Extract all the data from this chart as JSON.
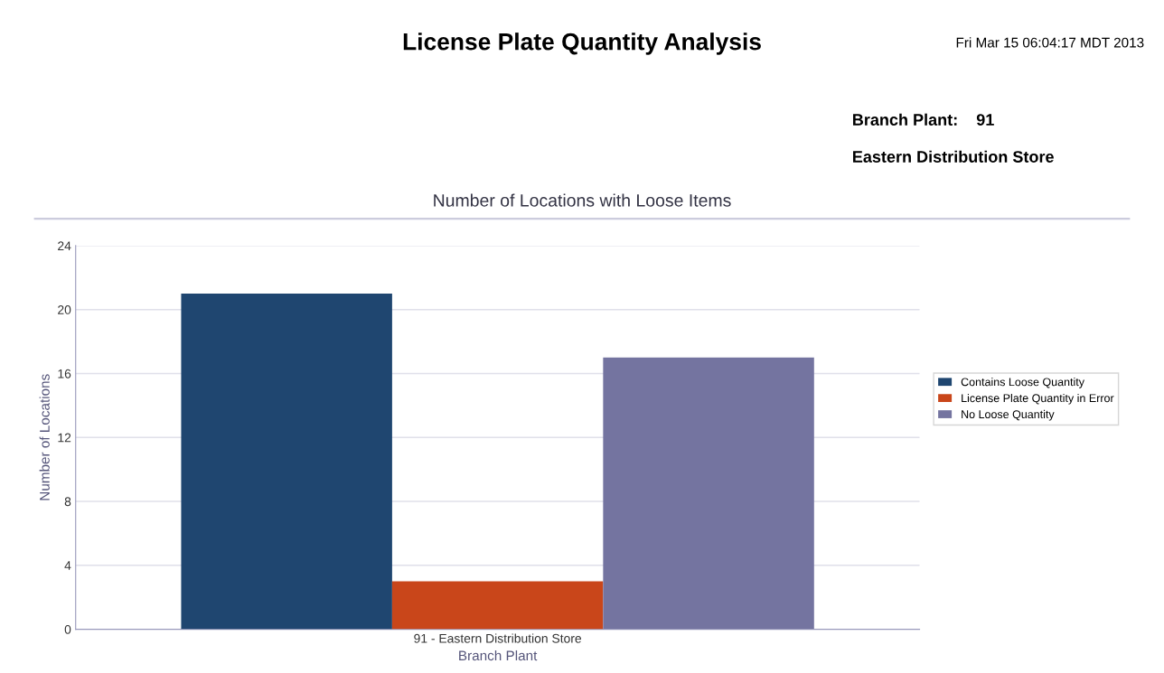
{
  "chart_data": {
    "type": "bar",
    "title": "License Plate Quantity Analysis",
    "subtitle": "Number of Locations with Loose Items",
    "annotations": [
      "Fri Mar 15 06:04:17 MDT 2013",
      "Branch Plant:    91",
      "Eastern Distribution Store"
    ],
    "xlabel": "Branch Plant",
    "ylabel": "Number of Locations",
    "categories": [
      "91 - Eastern Distribution Store"
    ],
    "series": [
      {
        "name": "Contains Loose Quantity",
        "color": "#1f4670",
        "values": [
          21
        ]
      },
      {
        "name": "License Plate Quantity in Error",
        "color": "#c9461a",
        "values": [
          3
        ]
      },
      {
        "name": "No Loose Quantity",
        "color": "#7474a0",
        "values": [
          17
        ]
      }
    ],
    "ylim": [
      0,
      24
    ],
    "yticks": [
      0,
      4,
      8,
      12,
      16,
      20,
      24
    ],
    "grid": "y",
    "legend": "right"
  }
}
